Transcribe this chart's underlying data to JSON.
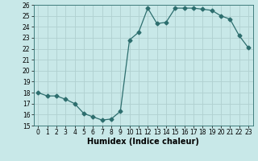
{
  "x": [
    0,
    1,
    2,
    3,
    4,
    5,
    6,
    7,
    8,
    9,
    10,
    11,
    12,
    13,
    14,
    15,
    16,
    17,
    18,
    19,
    20,
    21,
    22,
    23
  ],
  "y": [
    18.0,
    17.7,
    17.7,
    17.4,
    17.0,
    16.1,
    15.8,
    15.5,
    15.6,
    16.3,
    22.8,
    23.5,
    25.7,
    24.3,
    24.4,
    25.7,
    25.7,
    25.7,
    25.6,
    25.5,
    25.0,
    24.7,
    23.2,
    22.1
  ],
  "line_color": "#2d6e6e",
  "marker": "D",
  "markersize": 2.5,
  "bg_color": "#c8e8e8",
  "grid_color": "#b0d0d0",
  "xlabel": "Humidex (Indice chaleur)",
  "xlim": [
    -0.5,
    23.5
  ],
  "ylim": [
    15,
    26
  ],
  "yticks": [
    15,
    16,
    17,
    18,
    19,
    20,
    21,
    22,
    23,
    24,
    25,
    26
  ],
  "xticks": [
    0,
    1,
    2,
    3,
    4,
    5,
    6,
    7,
    8,
    9,
    10,
    11,
    12,
    13,
    14,
    15,
    16,
    17,
    18,
    19,
    20,
    21,
    22,
    23
  ],
  "label_fontsize": 7,
  "tick_fontsize": 5.5
}
